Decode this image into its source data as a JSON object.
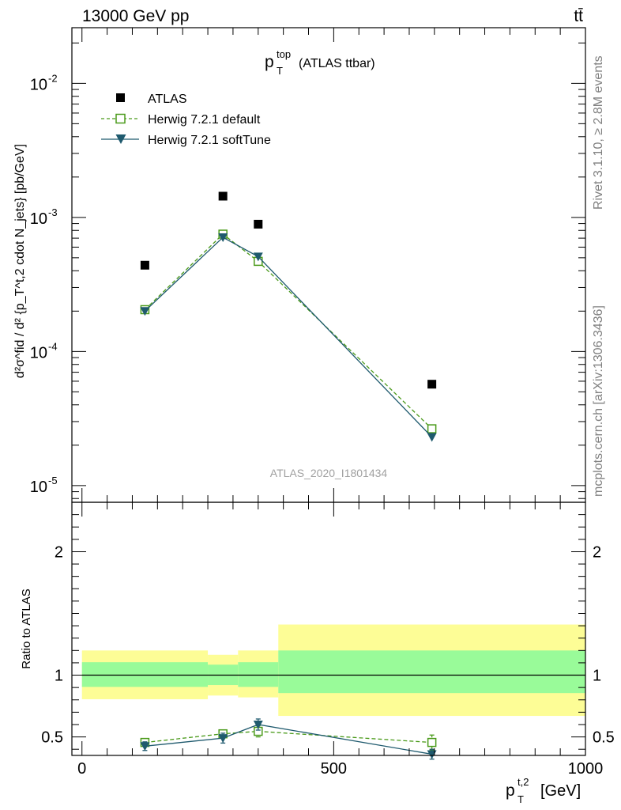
{
  "header": {
    "left_label": "13000 GeV pp",
    "right_label": "tt̄"
  },
  "side_labels": {
    "rivet": "Rivet 3.1.10, ≥ 2.8M events",
    "mcplots": "mcplots.cern.ch [arXiv:1306.3436]"
  },
  "chart_data": [
    {
      "type": "scatter",
      "panel": "main",
      "title": "p_T^top (ATLAS ttbar)",
      "title_main": "p",
      "title_sup": "top",
      "title_sub": "T",
      "title_suffix": "(ATLAS ttbar)",
      "watermark": "ATLAS_2020_I1801434",
      "ylabel": "d²σ^fid / d² {p_T^t,2 cdot N_jets} [pb/GeV]",
      "yscale": "log",
      "xlim": [
        -20,
        1000
      ],
      "ylim": [
        7.5e-06,
        0.026
      ],
      "ytick_labels": [
        {
          "base": "10",
          "exp": "-2",
          "value": 0.01
        },
        {
          "base": "10",
          "exp": "-3",
          "value": 0.001
        },
        {
          "base": "10",
          "exp": "-4",
          "value": 0.0001
        },
        {
          "base": "10",
          "exp": "-5",
          "value": 1e-05
        }
      ],
      "legend_position": "top-left",
      "series": [
        {
          "name": "ATLAS",
          "marker": "filled-square",
          "color": "#000000",
          "x": [
            125,
            280,
            350,
            695
          ],
          "y": [
            0.00044,
            0.00144,
            0.00089,
            5.7e-05
          ]
        },
        {
          "name": "Herwig 7.2.1 default",
          "marker": "open-square",
          "line": "dashed",
          "color": "#4a9a1a",
          "x": [
            125,
            280,
            350,
            695
          ],
          "y": [
            0.000205,
            0.00075,
            0.00047,
            2.65e-05
          ]
        },
        {
          "name": "Herwig 7.2.1 softTune",
          "marker": "filled-triangle-down",
          "line": "solid",
          "color": "#1f5a6e",
          "x": [
            125,
            280,
            350,
            695
          ],
          "y": [
            0.0002,
            0.00071,
            0.00051,
            2.3e-05
          ]
        }
      ]
    },
    {
      "type": "scatter",
      "panel": "ratio",
      "ylabel": "Ratio to ATLAS",
      "xlabel": "p_T^t,2 [GeV]",
      "xlabel_main": "p",
      "xlabel_sup": "t,2",
      "xlabel_sub": "T",
      "xlabel_suffix": "[GeV]",
      "xlim": [
        -20,
        1000
      ],
      "ylim": [
        0.35,
        2.4
      ],
      "yticks": [
        0.5,
        1,
        2
      ],
      "ytick_labels": [
        "0.5",
        "1",
        "2"
      ],
      "xticks": [
        0,
        500,
        1000
      ],
      "xtick_labels": [
        "0",
        "500",
        "1000"
      ],
      "reference_line": 1,
      "uncertainty_bands": [
        {
          "x0": 0,
          "x1": 250,
          "inner": [
            0.905,
            1.105
          ],
          "outer": [
            0.805,
            1.2
          ]
        },
        {
          "x0": 250,
          "x1": 310,
          "inner": [
            0.92,
            1.085
          ],
          "outer": [
            0.835,
            1.165
          ]
        },
        {
          "x0": 310,
          "x1": 390,
          "inner": [
            0.905,
            1.105
          ],
          "outer": [
            0.82,
            1.2
          ]
        },
        {
          "x0": 390,
          "x1": 1000,
          "inner": [
            0.855,
            1.2
          ],
          "outer": [
            0.67,
            1.41
          ]
        }
      ],
      "band_colors": {
        "inner": "#99fb99",
        "outer": "#fdfd96"
      },
      "series": [
        {
          "name": "Herwig 7.2.1 default",
          "marker": "open-square",
          "line": "dashed",
          "color": "#4a9a1a",
          "x": [
            125,
            280,
            350,
            695
          ],
          "y": [
            0.455,
            0.525,
            0.545,
            0.455
          ],
          "err": [
            0.03,
            0.03,
            0.045,
            0.06
          ]
        },
        {
          "name": "Herwig 7.2.1 softTune",
          "marker": "filled-triangle-down",
          "line": "solid",
          "color": "#1f5a6e",
          "x": [
            125,
            280,
            350,
            695
          ],
          "y": [
            0.425,
            0.49,
            0.6,
            0.36
          ],
          "err": [
            0.035,
            0.04,
            0.045,
            0.04
          ]
        }
      ]
    }
  ]
}
